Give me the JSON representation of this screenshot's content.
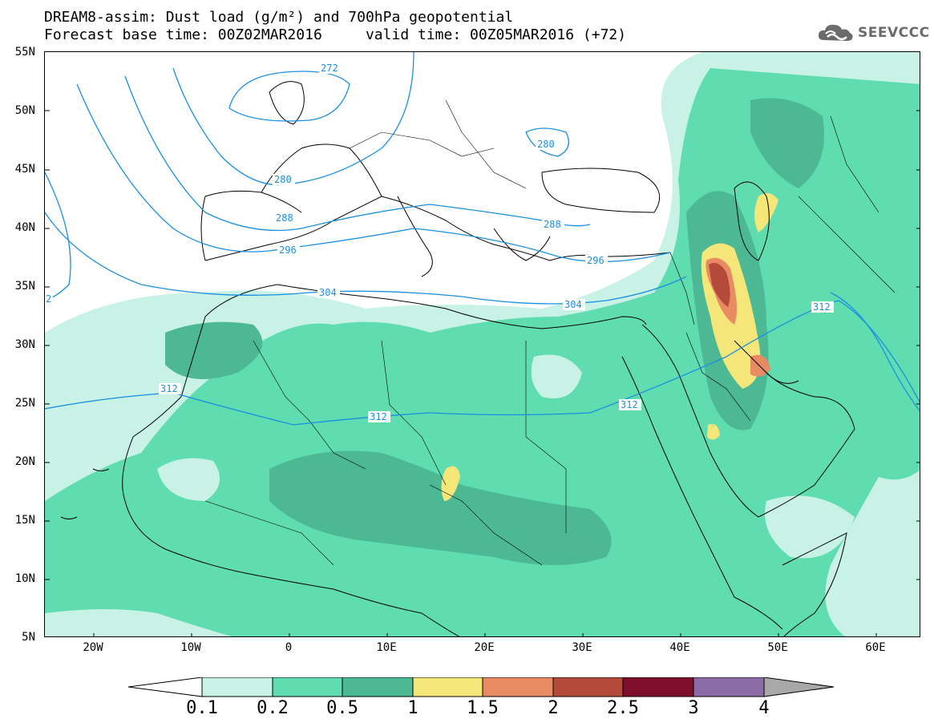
{
  "header": {
    "title_line1": "DREAM8-assim: Dust load (g/m²) and 700hPa geopotential",
    "title_line2": "Forecast base time: 00Z02MAR2016     valid time: 00Z05MAR2016 (+72)"
  },
  "logo": {
    "text": "SEEVCCC",
    "icon": "cloud-icon",
    "color": "#6b6b6b"
  },
  "map": {
    "lat_labels": [
      "55N",
      "50N",
      "45N",
      "40N",
      "35N",
      "30N",
      "25N",
      "20N",
      "15N",
      "10N",
      "5N"
    ],
    "lon_labels": [
      "20W",
      "10W",
      "0",
      "10E",
      "20E",
      "30E",
      "40E",
      "50E",
      "60E"
    ],
    "contour_labels": [
      "272",
      "280",
      "280",
      "288",
      "296",
      "304",
      "304",
      "296",
      "312",
      "312",
      "312",
      "312",
      "288",
      "2"
    ],
    "contour_color": "#1a8fe0",
    "coastline_color": "#000000"
  },
  "colorbar": {
    "ticks": [
      "0.1",
      "0.2",
      "0.5",
      "1",
      "1.5",
      "2",
      "2.5",
      "3",
      "4"
    ],
    "colors": [
      "#c8f2e6",
      "#5fdcb0",
      "#4cb894",
      "#f5e67a",
      "#e88a62",
      "#b34a3a",
      "#7d0f2a",
      "#8c6aa6",
      "#a8a8a8"
    ],
    "under_color": "#ffffff",
    "over_color": "#a8a8a8"
  }
}
